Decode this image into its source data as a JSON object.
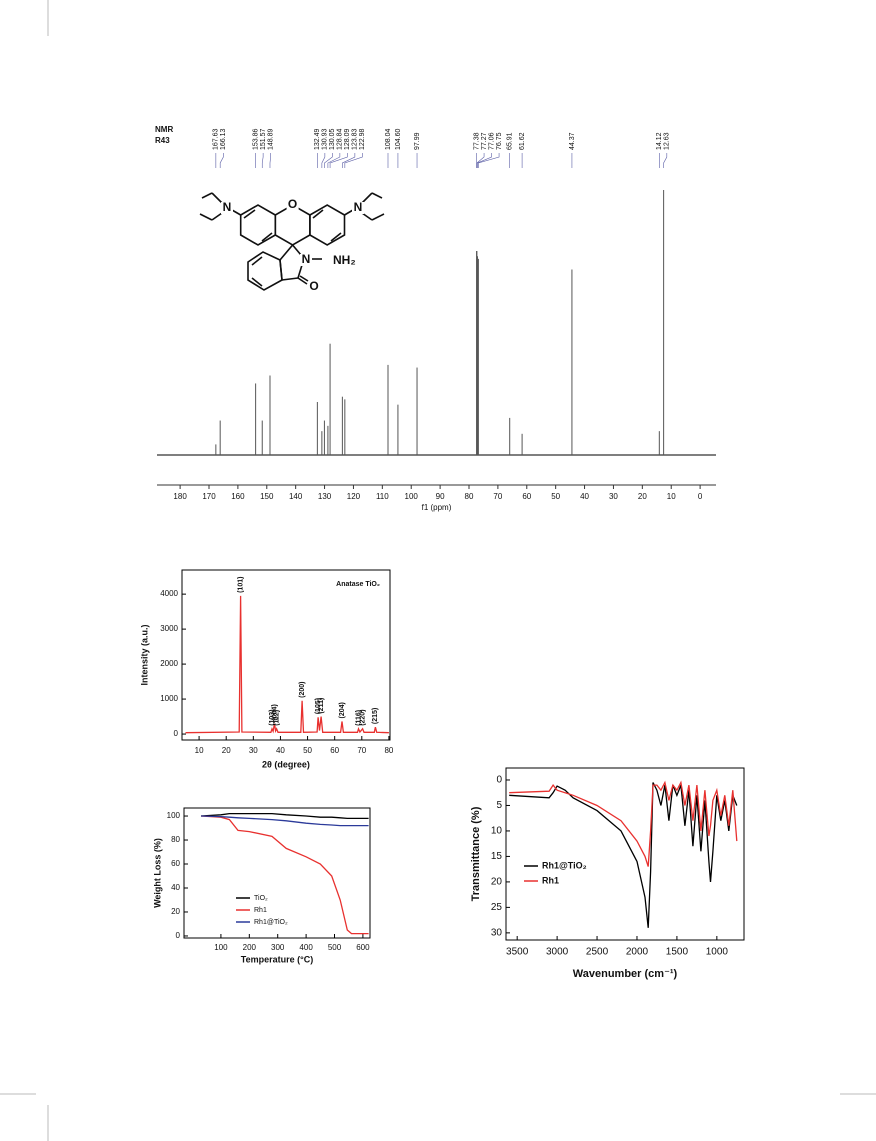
{
  "chart_data": [
    {
      "type": "stick",
      "title_lines": [
        "NMR",
        "R43"
      ],
      "xlabel": "f1 (ppm)",
      "xlim": [
        188,
        -5.5
      ],
      "xticks": [
        180,
        170,
        160,
        150,
        140,
        130,
        120,
        110,
        100,
        90,
        80,
        70,
        60,
        50,
        40,
        30,
        20,
        10,
        0
      ],
      "peaks": [
        167.63,
        166.13,
        153.86,
        151.57,
        148.89,
        132.49,
        130.93,
        130.05,
        128.84,
        128.09,
        123.83,
        122.98,
        108.04,
        104.6,
        97.99,
        77.38,
        77.27,
        77.06,
        76.75,
        65.91,
        61.62,
        44.37,
        14.12,
        12.63
      ],
      "peak_labels": [
        "167.63",
        "166.13",
        "153.86",
        "151.57",
        "148.89",
        "132.49",
        "130.93",
        "130.05",
        "128.84",
        "128.09",
        "123.83",
        "122.98",
        "108.04",
        "104.60",
        "97.99",
        "77.38",
        "77.27",
        "77.06",
        "76.75",
        "65.91",
        "61.62",
        "44.37",
        "14.12",
        "12.63"
      ],
      "values": [
        4,
        13,
        27,
        13,
        30,
        20,
        9,
        13,
        11,
        42,
        22,
        21,
        34,
        19,
        33,
        77,
        77,
        75,
        74,
        14,
        8,
        70,
        9,
        100
      ],
      "color": "#555555",
      "label_color": "#5b5ea6"
    },
    {
      "type": "line",
      "annotation": "Anatase TiO₂",
      "xlabel": "2θ (degree)",
      "ylabel": "Intensity (a.u.)",
      "xlim": [
        3.7,
        80.4
      ],
      "xticks": [
        10,
        20,
        30,
        40,
        50,
        60,
        70,
        80
      ],
      "ylim": [
        -170,
        4690
      ],
      "yticks": [
        0,
        1000,
        2000,
        3000,
        4000
      ],
      "x": [
        5,
        24.8,
        25.3,
        25.8,
        36.5,
        36.9,
        37.3,
        37.8,
        38.2,
        38.6,
        39.1,
        47.5,
        48,
        48.5,
        53.5,
        53.9,
        54.4,
        55,
        55.6,
        62.2,
        62.7,
        63.2,
        68.4,
        68.8,
        69.3,
        70.3,
        70.8,
        74.6,
        75,
        75.5,
        80
      ],
      "values": [
        40,
        60,
        3950,
        60,
        50,
        150,
        80,
        300,
        90,
        150,
        50,
        50,
        950,
        50,
        60,
        480,
        100,
        500,
        50,
        50,
        360,
        50,
        50,
        150,
        60,
        150,
        50,
        50,
        200,
        50,
        40
      ],
      "color": "#e8312f",
      "peak_labels": [
        {
          "x": 25.3,
          "label": "(101)"
        },
        {
          "x": 36.9,
          "label": "(103)"
        },
        {
          "x": 37.8,
          "label": "(004)"
        },
        {
          "x": 38.6,
          "label": "(112)"
        },
        {
          "x": 48,
          "label": "(200)"
        },
        {
          "x": 53.9,
          "label": "(105)"
        },
        {
          "x": 55,
          "label": "(211)"
        },
        {
          "x": 62.7,
          "label": "(204)"
        },
        {
          "x": 68.8,
          "label": "(116)"
        },
        {
          "x": 70.3,
          "label": "(220)"
        },
        {
          "x": 75,
          "label": "(215)"
        }
      ]
    },
    {
      "type": "line",
      "xlabel": "Temperature (°C)",
      "ylabel": "Weight Loss (%)",
      "xlim": [
        -30,
        625
      ],
      "xticks": [
        100,
        200,
        300,
        400,
        500,
        600
      ],
      "ylim": [
        -1.7,
        106.7
      ],
      "yticks": [
        0,
        20,
        40,
        60,
        80,
        100
      ],
      "x": [
        30,
        100,
        130,
        160,
        200,
        280,
        330,
        400,
        450,
        490,
        520,
        545,
        560,
        620
      ],
      "series": [
        {
          "name": "TiO₂",
          "color": "#000000",
          "values": [
            100,
            101,
            102,
            102,
            102,
            102,
            101,
            100,
            99,
            99,
            98.5,
            98,
            98,
            98
          ]
        },
        {
          "name": "Rh1",
          "color": "#e8312f",
          "values": [
            100,
            99,
            97,
            88,
            87,
            83,
            73,
            66,
            60,
            50,
            30,
            5,
            2,
            2
          ]
        },
        {
          "name": "Rh1@TiO₂",
          "color": "#2b3a9a",
          "values": [
            100,
            99.5,
            99,
            98.5,
            98,
            97,
            96,
            94,
            93,
            92.5,
            92,
            92,
            92,
            92
          ]
        }
      ],
      "legend": "lower left"
    },
    {
      "type": "line",
      "xlabel": "Wavenumber (cm⁻¹)",
      "ylabel": "Transmittance (%)",
      "xlim": [
        3640,
        660
      ],
      "xticks": [
        3500,
        3000,
        2500,
        2000,
        1500,
        1000
      ],
      "ylim": [
        31.4,
        -2.35
      ],
      "yticks": [
        0,
        5,
        10,
        15,
        20,
        25,
        30
      ],
      "x": [
        3600,
        3100,
        3050,
        3000,
        2900,
        2800,
        2500,
        2200,
        2000,
        1900,
        1860,
        1830,
        1800,
        1750,
        1700,
        1650,
        1600,
        1550,
        1500,
        1450,
        1400,
        1350,
        1300,
        1250,
        1200,
        1150,
        1100,
        1080,
        1050,
        1000,
        950,
        900,
        850,
        800,
        750
      ],
      "series": [
        {
          "name": "Rh1@TiO₂",
          "color": "#000000",
          "values": [
            3,
            3.5,
            2.5,
            1.2,
            2,
            3.5,
            6,
            10,
            16,
            23,
            29,
            18,
            0.5,
            2,
            5,
            1,
            8,
            1,
            3,
            1,
            9,
            2,
            13,
            3,
            14,
            4,
            16,
            20,
            14,
            3,
            8,
            4,
            10,
            3,
            5
          ]
        },
        {
          "name": "Rh1",
          "color": "#e8312f",
          "values": [
            2.5,
            2.2,
            1,
            2,
            2.5,
            3,
            5,
            8,
            12,
            15,
            17,
            10,
            1,
            1,
            2,
            0.5,
            4,
            1,
            2,
            0.5,
            5,
            1,
            8,
            1,
            10,
            2,
            11,
            9,
            4,
            2,
            7,
            3,
            9,
            2,
            12
          ]
        }
      ],
      "legend": "lower left"
    }
  ],
  "molecule": {
    "atoms": [
      "N",
      "O",
      "N",
      "N",
      "NH₂",
      "O"
    ]
  }
}
